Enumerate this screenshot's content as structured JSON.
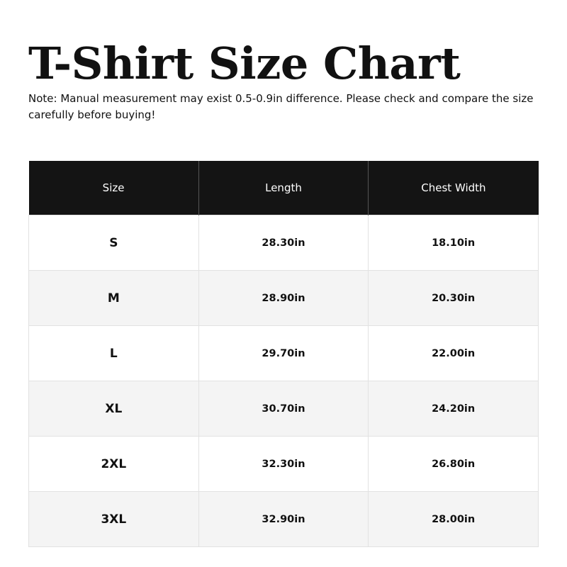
{
  "title": "T-Shirt Size Chart",
  "note": "Note: Manual measurement may exist 0.5-0.9in difference. Please check and compare the size carefully before buying!",
  "table": {
    "headers": [
      "Size",
      "Length",
      "Chest Width"
    ],
    "rows": [
      [
        "S",
        "28.30in",
        "18.10in"
      ],
      [
        "M",
        "28.90in",
        "20.30in"
      ],
      [
        "L",
        "29.70in",
        "22.00in"
      ],
      [
        "XL",
        "30.70in",
        "24.20in"
      ],
      [
        "2XL",
        "32.30in",
        "26.80in"
      ],
      [
        "3XL",
        "32.90in",
        "28.00in"
      ]
    ]
  },
  "colors": {
    "header_bg": "#141414",
    "alt_row_bg": "#f4f4f4"
  }
}
